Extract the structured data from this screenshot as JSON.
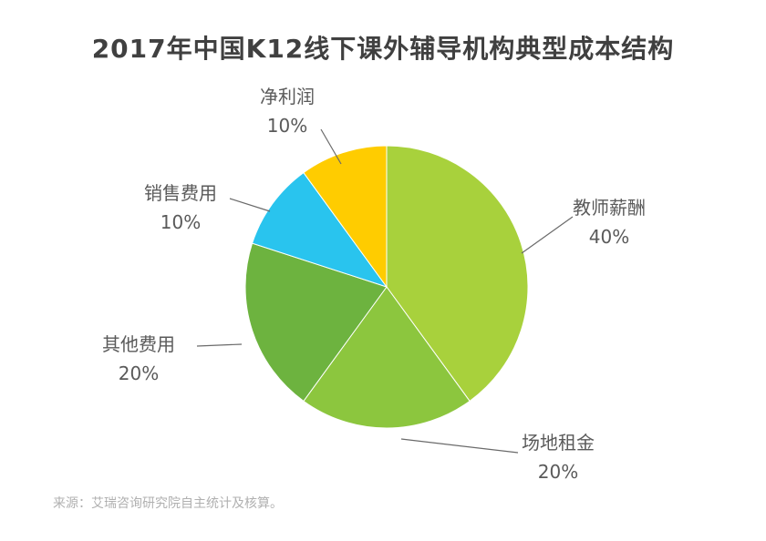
{
  "chart_data": {
    "type": "pie",
    "title": "2017年中国K12线下课外辅导机构典型成本结构",
    "slices": [
      {
        "label": "教师薪酬",
        "value": 40,
        "value_label": "40%",
        "color": "#a8d13c"
      },
      {
        "label": "场地租金",
        "value": 20,
        "value_label": "20%",
        "color": "#8cc63e"
      },
      {
        "label": "其他费用",
        "value": 20,
        "value_label": "20%",
        "color": "#6db33f"
      },
      {
        "label": "销售费用",
        "value": 10,
        "value_label": "10%",
        "color": "#29c4ee"
      },
      {
        "label": "净利润",
        "value": 10,
        "value_label": "10%",
        "color": "#ffcc00"
      }
    ]
  },
  "source": "来源：艾瑞咨询研究院自主统计及核算。"
}
